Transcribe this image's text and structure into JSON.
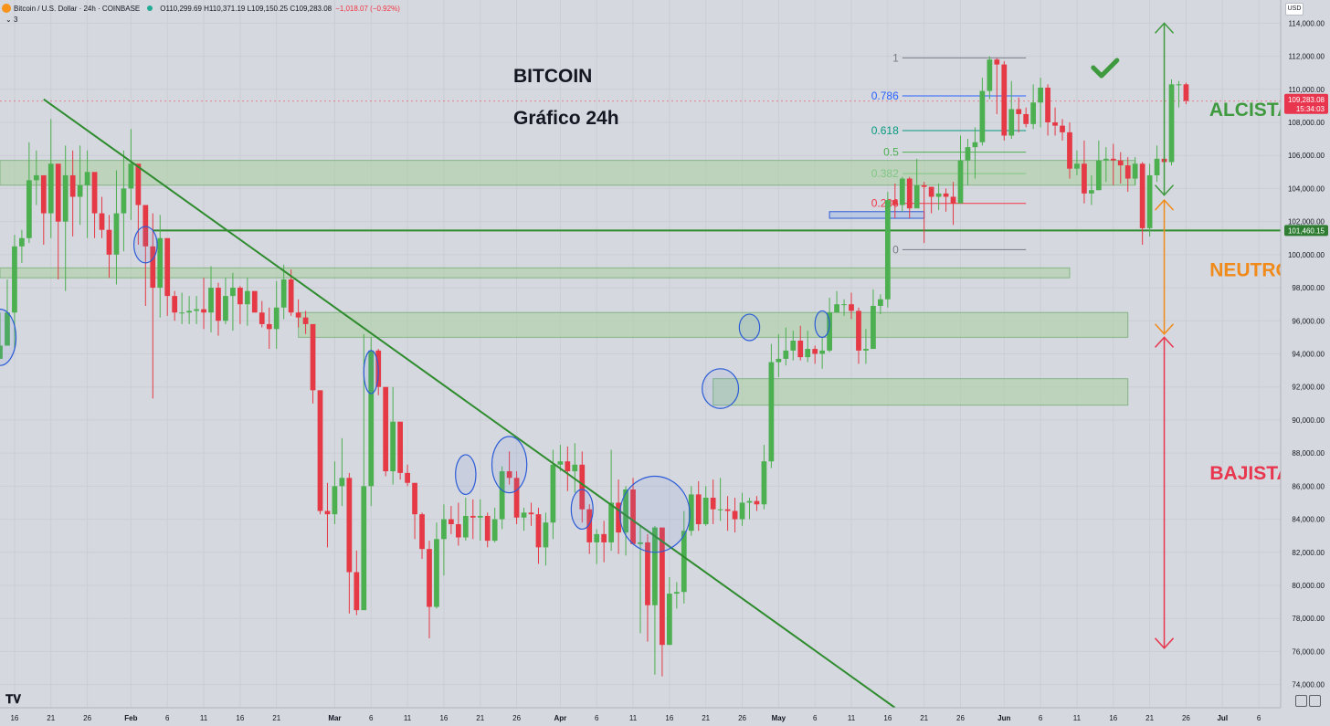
{
  "header": {
    "symbol": "Bitcoin / U.S. Dollar · 24h · COINBASE",
    "ohlc": "O110,299.69 H110,371.19 L109,150.25 C109,283.08",
    "change": "−1,018.07 (−0.92%)",
    "indicator_count": "3",
    "currency": "USD"
  },
  "colors": {
    "background": "#d5d8de",
    "up": "#4caf50",
    "down": "#e53945",
    "trendline": "#2e8b2e",
    "zone_fill": "#a9cfa0",
    "circle": "#2b5bd7",
    "alcista": "#3f9a3f",
    "neutro": "#f08a1a",
    "bajista": "#e8364f"
  },
  "chart_data": {
    "type": "candlestick",
    "title": "BITCOIN",
    "subtitle": "Gráfico 24h",
    "ylim": [
      72600,
      115400
    ],
    "y_ticks": [
      74000,
      76000,
      78000,
      80000,
      82000,
      84000,
      86000,
      88000,
      90000,
      92000,
      94000,
      96000,
      98000,
      100000,
      102000,
      104000,
      106000,
      108000,
      110000,
      112000,
      114000
    ],
    "y_tick_labels": [
      "74,000.00",
      "76,000.00",
      "78,000.00",
      "80,000.00",
      "82,000.00",
      "84,000.00",
      "86,000.00",
      "88,000.00",
      "90,000.00",
      "92,000.00",
      "94,000.00",
      "96,000.00",
      "98,000.00",
      "100,000.00",
      "102,000.00",
      "104,000.00",
      "106,000.00",
      "108,000.00",
      "110,000.00",
      "112,000.00",
      "114,000.00"
    ],
    "x_range": [
      "2025-01-14",
      "2025-07-09"
    ],
    "x_ticks": [
      {
        "date": "2025-01-16",
        "label": "16",
        "bold": false
      },
      {
        "date": "2025-01-21",
        "label": "21",
        "bold": false
      },
      {
        "date": "2025-01-26",
        "label": "26",
        "bold": false
      },
      {
        "date": "2025-02-01",
        "label": "Feb",
        "bold": true
      },
      {
        "date": "2025-02-06",
        "label": "6",
        "bold": false
      },
      {
        "date": "2025-02-11",
        "label": "11",
        "bold": false
      },
      {
        "date": "2025-02-16",
        "label": "16",
        "bold": false
      },
      {
        "date": "2025-02-21",
        "label": "21",
        "bold": false
      },
      {
        "date": "2025-03-01",
        "label": "Mar",
        "bold": true
      },
      {
        "date": "2025-03-06",
        "label": "6",
        "bold": false
      },
      {
        "date": "2025-03-11",
        "label": "11",
        "bold": false
      },
      {
        "date": "2025-03-16",
        "label": "16",
        "bold": false
      },
      {
        "date": "2025-03-21",
        "label": "21",
        "bold": false
      },
      {
        "date": "2025-03-26",
        "label": "26",
        "bold": false
      },
      {
        "date": "2025-04-01",
        "label": "Apr",
        "bold": true
      },
      {
        "date": "2025-04-06",
        "label": "6",
        "bold": false
      },
      {
        "date": "2025-04-11",
        "label": "11",
        "bold": false
      },
      {
        "date": "2025-04-16",
        "label": "16",
        "bold": false
      },
      {
        "date": "2025-04-21",
        "label": "21",
        "bold": false
      },
      {
        "date": "2025-04-26",
        "label": "26",
        "bold": false
      },
      {
        "date": "2025-05-01",
        "label": "May",
        "bold": true
      },
      {
        "date": "2025-05-06",
        "label": "6",
        "bold": false
      },
      {
        "date": "2025-05-11",
        "label": "11",
        "bold": false
      },
      {
        "date": "2025-05-16",
        "label": "16",
        "bold": false
      },
      {
        "date": "2025-05-21",
        "label": "21",
        "bold": false
      },
      {
        "date": "2025-05-26",
        "label": "26",
        "bold": false
      },
      {
        "date": "2025-06-01",
        "label": "Jun",
        "bold": true
      },
      {
        "date": "2025-06-06",
        "label": "6",
        "bold": false
      },
      {
        "date": "2025-06-11",
        "label": "11",
        "bold": false
      },
      {
        "date": "2025-06-16",
        "label": "16",
        "bold": false
      },
      {
        "date": "2025-06-21",
        "label": "21",
        "bold": false
      },
      {
        "date": "2025-06-26",
        "label": "26",
        "bold": false
      },
      {
        "date": "2025-07-01",
        "label": "Jul",
        "bold": true
      },
      {
        "date": "2025-07-06",
        "label": "6",
        "bold": false
      }
    ],
    "start_date": "2025-01-14",
    "closes": [
      94500,
      96500,
      100500,
      101000,
      104500,
      104800,
      102500,
      105500,
      102000,
      104800,
      103500,
      104200,
      105000,
      102500,
      101500,
      100000,
      102500,
      104000,
      105500,
      103000,
      100500,
      98000,
      101000,
      97500,
      96500,
      96500,
      96600,
      96700,
      96500,
      98000,
      96000,
      97500,
      98000,
      97000,
      97800,
      96500,
      95800,
      95500,
      96800,
      98500,
      96500,
      96200,
      95800,
      91800,
      84500,
      84300,
      86000,
      86500,
      80800,
      78500,
      86000,
      94200,
      92000,
      86900,
      89900,
      86800,
      86200,
      84300,
      82200,
      78700,
      82800,
      84000,
      83700,
      82900,
      84200,
      84100,
      84200,
      82700,
      84000,
      86900,
      86500,
      84100,
      84400,
      84300,
      82300,
      83800,
      87300,
      87500,
      86900,
      87300,
      84600,
      82600,
      83100,
      82600,
      85000,
      83200,
      85800,
      82500,
      82600,
      78800,
      83500,
      76400,
      79500,
      79600,
      83300,
      85500,
      83700,
      85300,
      84600,
      84600,
      84500,
      84000,
      85000,
      85100,
      84900,
      87500,
      93500,
      93700,
      94200,
      94800,
      93800,
      94300,
      94000,
      94200,
      96500,
      97000,
      97000,
      96600,
      94200,
      94300,
      96900,
      97300,
      103300,
      103000,
      104600,
      102800,
      104200,
      104100,
      103500,
      103700,
      103500,
      103100,
      105700,
      106500,
      106800,
      109900,
      111800,
      111500,
      107200,
      108800,
      108500,
      107900,
      109200,
      110100,
      108000,
      107800,
      107400,
      105200,
      105500,
      103700,
      103900,
      105700,
      105800,
      105700,
      105400,
      104600,
      105500,
      101600,
      104800,
      105800,
      105600,
      110300,
      110300,
      109300
    ],
    "highs": [
      96500,
      98500,
      101200,
      101500,
      106800,
      106300,
      103800,
      108200,
      104500,
      106600,
      106300,
      106600,
      106300,
      104800,
      103500,
      102400,
      105100,
      106300,
      107600,
      104600,
      102100,
      102500,
      102400,
      98900,
      97800,
      97700,
      97500,
      97500,
      98600,
      99300,
      98300,
      98600,
      98900,
      98100,
      98600,
      97400,
      97200,
      96800,
      98400,
      99400,
      99100,
      97300,
      96600,
      92900,
      89500,
      86200,
      87500,
      88900,
      86800,
      82100,
      95200,
      95000,
      94300,
      90700,
      92000,
      89200,
      87300,
      85800,
      84400,
      82700,
      83800,
      84900,
      84800,
      85000,
      85300,
      85200,
      85200,
      84400,
      84700,
      87200,
      88100,
      86900,
      84700,
      85000,
      84700,
      84400,
      88200,
      88500,
      88400,
      88600,
      88100,
      84900,
      83400,
      83900,
      88200,
      86400,
      86000,
      86500,
      83600,
      83100,
      83600,
      79300,
      80500,
      80200,
      84500,
      86000,
      86300,
      86000,
      86400,
      86500,
      85400,
      85300,
      85600,
      85300,
      85400,
      88500,
      94600,
      95200,
      95600,
      95400,
      95700,
      95400,
      94500,
      95000,
      97400,
      97800,
      97300,
      97700,
      96800,
      95500,
      97900,
      97600,
      103800,
      104300,
      104700,
      104700,
      105800,
      104400,
      104100,
      104300,
      104000,
      104400,
      107200,
      107000,
      107700,
      110700,
      112000,
      111900,
      111700,
      110500,
      109500,
      108900,
      110300,
      110700,
      110300,
      108900,
      108200,
      108000,
      106300,
      106900,
      104800,
      106900,
      106500,
      106700,
      106200,
      105900,
      105900,
      105600,
      105500,
      106600,
      106000,
      110600,
      110500,
      110400
    ],
    "lows": [
      93900,
      94500,
      94300,
      99500,
      100700,
      103000,
      100600,
      101000,
      98500,
      97800,
      101100,
      101800,
      101000,
      101000,
      101000,
      98600,
      98200,
      100200,
      102100,
      100600,
      96900,
      91300,
      96200,
      96300,
      96000,
      95800,
      95800,
      95800,
      95500,
      95300,
      95100,
      95800,
      95400,
      95800,
      95700,
      96500,
      95600,
      94300,
      94300,
      96100,
      96300,
      95600,
      95200,
      91000,
      84300,
      82300,
      83700,
      84800,
      78300,
      78200,
      85200,
      84800,
      91500,
      86600,
      86100,
      86400,
      86000,
      82800,
      81600,
      76800,
      78600,
      80600,
      83100,
      82400,
      82700,
      82800,
      82700,
      82300,
      82600,
      83400,
      86100,
      83700,
      83300,
      83600,
      81300,
      81200,
      82800,
      86900,
      85700,
      85600,
      83800,
      81900,
      81300,
      81400,
      82100,
      81900,
      81800,
      82500,
      77100,
      76600,
      74600,
      74500,
      76600,
      78600,
      78900,
      83000,
      83300,
      83600,
      83700,
      83900,
      83300,
      83200,
      83600,
      84000,
      84500,
      84600,
      87100,
      92600,
      93300,
      93600,
      93600,
      93500,
      93400,
      93100,
      94100,
      96600,
      96300,
      96100,
      93400,
      93400,
      94600,
      96400,
      96800,
      102200,
      102600,
      102200,
      102900,
      100700,
      102500,
      102700,
      102600,
      101800,
      103600,
      104200,
      104600,
      106600,
      109400,
      108500,
      106900,
      107000,
      107400,
      107700,
      107600,
      107700,
      107200,
      107200,
      106900,
      104600,
      104800,
      103100,
      103000,
      103900,
      104400,
      104200,
      104300,
      103800,
      104200,
      100600,
      101100,
      104400,
      105600,
      105400,
      108900,
      109100
    ],
    "zones": [
      {
        "from_date": "2025-01-14",
        "to_date": "2025-06-19",
        "low": 104200,
        "high": 105700
      },
      {
        "from_date": "2025-01-14",
        "to_date": "2025-06-10",
        "low": 98600,
        "high": 99200
      },
      {
        "from_date": "2025-02-24",
        "to_date": "2025-06-18",
        "low": 95000,
        "high": 96500
      },
      {
        "from_date": "2025-04-22",
        "to_date": "2025-06-18",
        "low": 90900,
        "high": 92500
      }
    ],
    "horizontal_line": {
      "price": 101460.15,
      "label": "101,460.15",
      "from_date": "2025-02-04"
    },
    "current_price": {
      "price": 109283.08,
      "label": "109,283.08",
      "countdown": "15:34:03"
    },
    "trendline": {
      "start_date": "2025-01-20",
      "start_price": 109400,
      "end_date": "2025-05-17",
      "end_price": 72600
    },
    "fibonacci": {
      "from_date": "2025-05-18",
      "to_date": "2025-06-04",
      "levels": [
        {
          "ratio": "1",
          "price": 111900,
          "color": "#787b86"
        },
        {
          "ratio": "0.786",
          "price": 109600,
          "color": "#2962ff"
        },
        {
          "ratio": "0.618",
          "price": 107500,
          "color": "#089981"
        },
        {
          "ratio": "0.5",
          "price": 106200,
          "color": "#4caf50"
        },
        {
          "ratio": "0.382",
          "price": 104900,
          "color": "#81c784"
        },
        {
          "ratio": "0.236",
          "price": 103100,
          "color": "#f23645"
        },
        {
          "ratio": "0",
          "price": 100300,
          "color": "#787b86"
        }
      ]
    },
    "circles": [
      {
        "date": "2025-01-14",
        "price": 95000,
        "rx_days": 2.2,
        "ry_price": 1700
      },
      {
        "date": "2025-02-03",
        "price": 100600,
        "rx_days": 1.6,
        "ry_price": 1100
      },
      {
        "date": "2025-03-06",
        "price": 92900,
        "rx_days": 1.0,
        "ry_price": 1300
      },
      {
        "date": "2025-03-19",
        "price": 86700,
        "rx_days": 1.4,
        "ry_price": 1200
      },
      {
        "date": "2025-03-25",
        "price": 87300,
        "rx_days": 2.4,
        "ry_price": 1700
      },
      {
        "date": "2025-04-04",
        "price": 84600,
        "rx_days": 1.5,
        "ry_price": 1200
      },
      {
        "date": "2025-04-14",
        "price": 84300,
        "rx_days": 4.8,
        "ry_price": 2300
      },
      {
        "date": "2025-04-23",
        "price": 91900,
        "rx_days": 2.5,
        "ry_price": 1200
      },
      {
        "date": "2025-04-27",
        "price": 95600,
        "rx_days": 1.4,
        "ry_price": 800
      },
      {
        "date": "2025-05-07",
        "price": 95800,
        "rx_days": 1.0,
        "ry_price": 800
      }
    ],
    "selection_box": {
      "from_date": "2025-05-08",
      "to_date": "2025-05-21",
      "low": 102200,
      "high": 102600
    },
    "vertical_arrows": [
      {
        "date": "2025-06-23",
        "top": 114000,
        "bottom": 103600,
        "color": "#3f9a3f"
      },
      {
        "date": "2025-06-23",
        "top": 103300,
        "bottom": 95200,
        "color": "#f08a1a"
      },
      {
        "date": "2025-06-23",
        "top": 95000,
        "bottom": 76200,
        "color": "#e8364f"
      }
    ],
    "labels": [
      {
        "text": "ALCISTA",
        "price": 108400,
        "color": "#3f9a3f"
      },
      {
        "text": "NEUTRO",
        "price": 98700,
        "color": "#f08a1a"
      },
      {
        "text": "BAJISTA",
        "price": 86400,
        "color": "#e8364f"
      }
    ],
    "checkmark": {
      "date": "2025-06-15",
      "price": 111200
    }
  }
}
